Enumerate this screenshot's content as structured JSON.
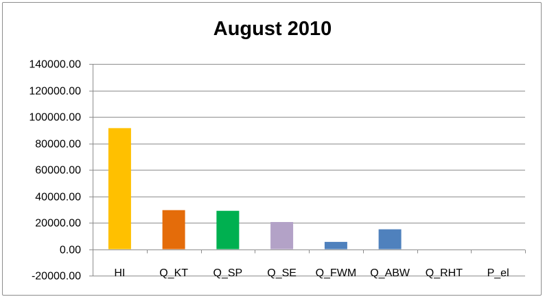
{
  "chart_data": {
    "type": "bar",
    "title": "August 2010",
    "categories": [
      "HI",
      "Q_KT",
      "Q_SP",
      "Q_SE",
      "Q_FWM",
      "Q_ABW",
      "Q_RHT",
      "P_el"
    ],
    "values": [
      91500,
      29500,
      29000,
      20500,
      5500,
      15000,
      0,
      0
    ],
    "colors": [
      "#ffc000",
      "#e46c0a",
      "#00b050",
      "#b3a2c7",
      "#4f81bd",
      "#4f81bd",
      "#4f81bd",
      "#4f81bd"
    ],
    "ylim": [
      -20000,
      140000
    ],
    "yticks": [
      -20000,
      0,
      20000,
      40000,
      60000,
      80000,
      100000,
      120000,
      140000
    ],
    "ytick_labels": [
      "-20000.00",
      "0.00",
      "20000.00",
      "40000.00",
      "60000.00",
      "80000.00",
      "100000.00",
      "120000.00",
      "140000.00"
    ],
    "xlabel": "",
    "ylabel": "",
    "grid": true,
    "legend": false
  }
}
